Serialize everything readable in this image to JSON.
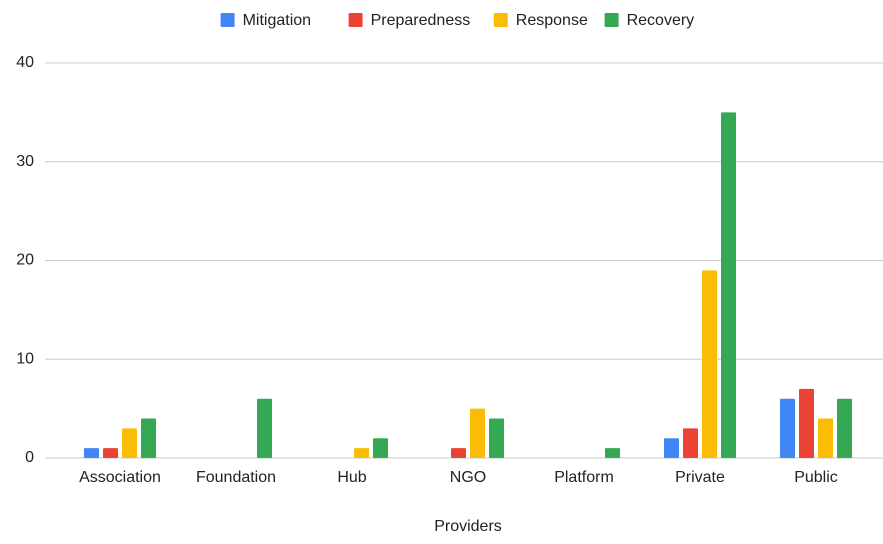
{
  "chart_data": {
    "type": "bar",
    "x_label": "Providers",
    "categories": [
      "Association",
      "Foundation",
      "Hub",
      "NGO",
      "Platform",
      "Private",
      "Public"
    ],
    "series": [
      {
        "name": "Mitigation",
        "color": "#4285f4",
        "values": [
          1,
          0,
          0,
          0,
          0,
          2,
          6
        ]
      },
      {
        "name": "Preparedness",
        "color": "#ea4335",
        "values": [
          1,
          0,
          0,
          1,
          0,
          3,
          7
        ]
      },
      {
        "name": "Response",
        "color": "#fbbc04",
        "values": [
          3,
          0,
          1,
          5,
          0,
          19,
          4
        ]
      },
      {
        "name": "Recovery",
        "color": "#34a853",
        "values": [
          4,
          6,
          2,
          4,
          1,
          35,
          6
        ]
      }
    ],
    "ylim": [
      0,
      40
    ],
    "yticks": [
      0,
      10,
      20,
      30,
      40
    ],
    "grid": true,
    "legend": "top"
  }
}
